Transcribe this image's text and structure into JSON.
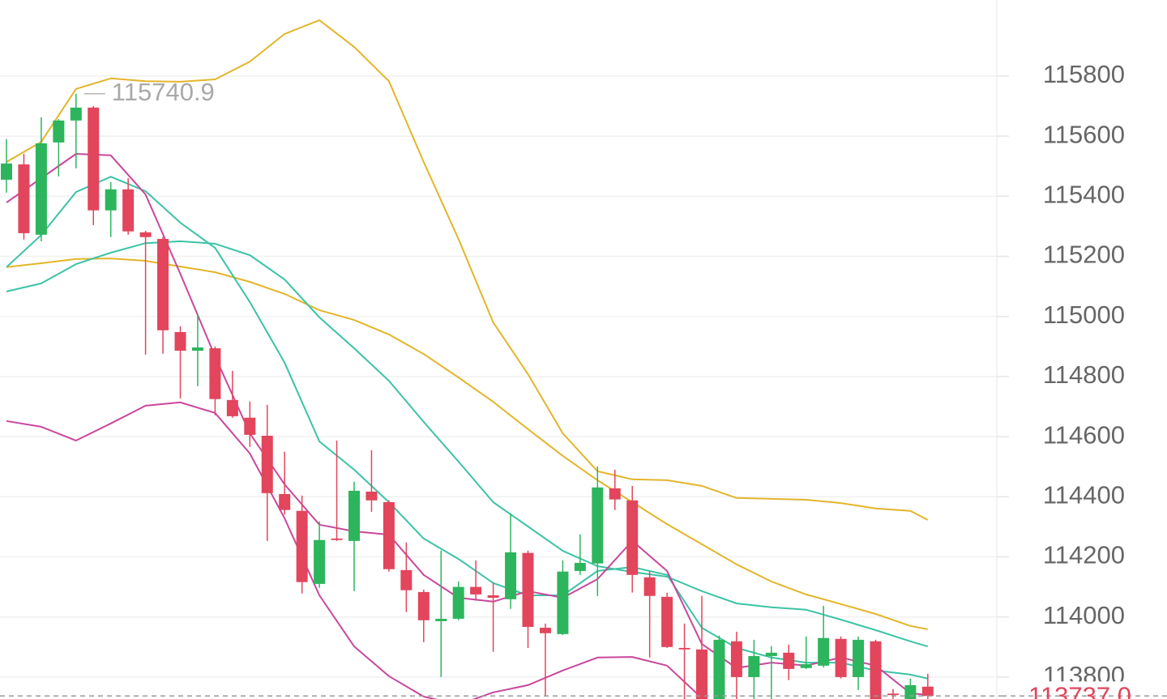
{
  "chart_data": {
    "type": "candlestick",
    "open": [
      115455,
      115506,
      115272,
      115579,
      115652,
      115695,
      115353,
      115423,
      115280,
      115258,
      114948,
      114886,
      114894,
      114722,
      114663,
      114603,
      114409,
      114353,
      114110,
      114261,
      114253,
      114417,
      114382,
      114156,
      114083,
      113986,
      113994,
      114100,
      114072,
      114059,
      114213,
      113964,
      113943,
      114153,
      114178,
      114428,
      114388,
      114132,
      114067,
      113897,
      113892,
      113720,
      113919,
      113800,
      113870,
      113881,
      113830,
      113838,
      113927,
      113800,
      113919,
      113745,
      113720,
      113768
    ],
    "high": [
      115590,
      115541,
      115663,
      115657,
      115740.9,
      115700,
      115447,
      115460,
      115285,
      115265,
      114967,
      115010,
      114900,
      114819,
      114717,
      114706,
      114550,
      114404,
      114318,
      114587,
      114450,
      114555,
      114388,
      114248,
      114091,
      114221,
      114118,
      114188,
      114113,
      114345,
      114221,
      113978,
      114188,
      114275,
      114501,
      114490,
      114436,
      114151,
      114081,
      113978,
      114070,
      113938,
      113951,
      113924,
      113903,
      113908,
      113935,
      114037,
      113935,
      113935,
      113924,
      113760,
      113795,
      113811
    ],
    "low": [
      115412,
      115256,
      115250,
      115466,
      115493,
      115304,
      115264,
      115272,
      114873,
      114876,
      114727,
      114768,
      114671,
      114663,
      114566,
      114253,
      114340,
      114078,
      114097,
      114253,
      114086,
      114350,
      114151,
      114016,
      113916,
      113800,
      113989,
      114054,
      113884,
      114027,
      113897,
      113736,
      113940,
      114140,
      114070,
      114356,
      114081,
      113865,
      113897,
      113720,
      113700,
      113700,
      113720,
      113720,
      113720,
      113790,
      113827,
      113832,
      113795,
      113757,
      113700,
      113720,
      113700,
      113720
    ],
    "close": [
      115509,
      115277,
      115576,
      115652,
      115695,
      115353,
      115423,
      115283,
      115264,
      114954,
      114886,
      114897,
      114725,
      114668,
      114606,
      114412,
      114356,
      114116,
      114256,
      114256,
      114420,
      114388,
      114159,
      114089,
      113989,
      113994,
      114100,
      114075,
      114064,
      114215,
      113967,
      113946,
      114151,
      114180,
      114431,
      114391,
      114140,
      114070,
      113900,
      113892,
      113720,
      113924,
      113800,
      113870,
      113881,
      113827,
      113843,
      113930,
      113800,
      113924,
      113720,
      113740,
      113773,
      113737
    ],
    "up_color": "#2db55d",
    "down_color": "#e2455c",
    "line_x": [
      0,
      2,
      4,
      6,
      8,
      10,
      12,
      14,
      16,
      18,
      20,
      22,
      24,
      26,
      28,
      30,
      32,
      34,
      36,
      38,
      40,
      42,
      44,
      46,
      48,
      50,
      52,
      53
    ],
    "lines": [
      {
        "color": "#e3b52a",
        "values": [
          115514,
          115581,
          115757,
          115792,
          115783,
          115781,
          115789,
          115848,
          115940,
          115986,
          115897,
          115783,
          115514,
          115258,
          114980,
          114808,
          114611,
          114485,
          114458,
          114455,
          114436,
          114396,
          114393,
          114390,
          114379,
          114361,
          114353,
          114323
        ]
      },
      {
        "color": "#e3b52a",
        "values": [
          115164,
          115177,
          115191,
          115193,
          115185,
          115166,
          115147,
          115115,
          115075,
          115021,
          114988,
          114940,
          114875,
          114797,
          114716,
          114625,
          114536,
          114455,
          114382,
          114309,
          114242,
          114175,
          114118,
          114075,
          114043,
          114010,
          113970,
          113959
        ]
      },
      {
        "color": "#3cc3a6",
        "values": [
          115164,
          115271,
          115414,
          115465,
          115417,
          115312,
          115228,
          115048,
          114846,
          114584,
          114490,
          114382,
          114261,
          114193,
          114113,
          114072,
          114072,
          114153,
          114166,
          114140,
          113964,
          113897,
          113865,
          113848,
          113848,
          113822,
          113808,
          113795
        ]
      },
      {
        "color": "#3cc3a6",
        "values": [
          115083,
          115110,
          115174,
          115212,
          115244,
          115250,
          115242,
          115204,
          115123,
          114997,
          114894,
          114786,
          114649,
          114517,
          114382,
          114301,
          114220,
          114169,
          114150,
          114134,
          114086,
          114045,
          114032,
          114024,
          113991,
          113956,
          113919,
          113902
        ]
      },
      {
        "color": "#c9479d",
        "values": [
          115379,
          115460,
          115541,
          115536,
          115406,
          115142,
          114867,
          114611,
          114441,
          114307,
          114285,
          114274,
          114140,
          114064,
          114051,
          114086,
          114064,
          114126,
          114253,
          114153,
          113910,
          113830,
          113848,
          113838,
          113865,
          113838,
          113746,
          113741
        ]
      },
      {
        "color": "#c9479d",
        "values": [
          114652,
          114633,
          114587,
          114644,
          114703,
          114714,
          114679,
          114544,
          114328,
          114072,
          113902,
          113803,
          113735,
          113708,
          113749,
          113773,
          113822,
          113865,
          113867,
          113838,
          113730,
          null,
          null,
          null,
          null,
          null,
          null,
          null
        ]
      }
    ],
    "ylim": [
      113727,
      116053
    ],
    "yticks": [
      113800,
      114000,
      114200,
      114400,
      114600,
      114800,
      115000,
      115200,
      115400,
      115600,
      115800
    ],
    "grid": true,
    "last_price": {
      "value": 113737,
      "label": "113737.0"
    }
  }
}
